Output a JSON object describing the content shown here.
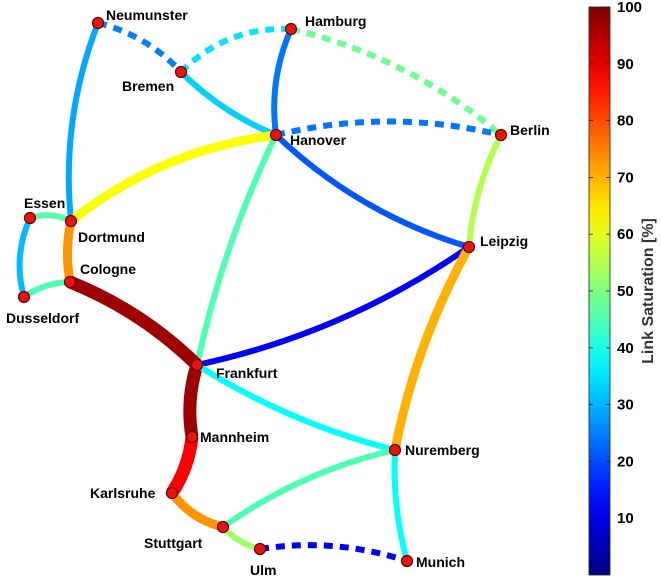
{
  "colorbar": {
    "label": "Link Saturation [%]",
    "min": 0,
    "max": 100,
    "ticks": [
      "10",
      "20",
      "30",
      "40",
      "50",
      "60",
      "70",
      "80",
      "90",
      "100"
    ],
    "colormap": "jet"
  },
  "cities": [
    {
      "id": "neumunster",
      "label": "Neumunster"
    },
    {
      "id": "hamburg",
      "label": "Hamburg"
    },
    {
      "id": "bremen",
      "label": "Bremen"
    },
    {
      "id": "hanover",
      "label": "Hanover"
    },
    {
      "id": "berlin",
      "label": "Berlin"
    },
    {
      "id": "essen",
      "label": "Essen"
    },
    {
      "id": "dortmund",
      "label": "Dortmund"
    },
    {
      "id": "cologne",
      "label": "Cologne"
    },
    {
      "id": "dusseldorf",
      "label": "Dusseldorf"
    },
    {
      "id": "leipzig",
      "label": "Leipzig"
    },
    {
      "id": "frankfurt",
      "label": "Frankfurt"
    },
    {
      "id": "mannheim",
      "label": "Mannheim"
    },
    {
      "id": "nuremberg",
      "label": "Nuremberg"
    },
    {
      "id": "karlsruhe",
      "label": "Karlsruhe"
    },
    {
      "id": "stuttgart",
      "label": "Stuttgart"
    },
    {
      "id": "ulm",
      "label": "Ulm"
    },
    {
      "id": "munich",
      "label": "Munich"
    }
  ],
  "links": [
    {
      "from": "neumunster",
      "to": "bremen",
      "saturation": 25,
      "dashed": true
    },
    {
      "from": "neumunster",
      "to": "dortmund",
      "saturation": 29,
      "dashed": false
    },
    {
      "from": "bremen",
      "to": "hamburg",
      "saturation": 35,
      "dashed": true
    },
    {
      "from": "bremen",
      "to": "hanover",
      "saturation": 33,
      "dashed": false
    },
    {
      "from": "hamburg",
      "to": "berlin",
      "saturation": 48,
      "dashed": true
    },
    {
      "from": "hamburg",
      "to": "hanover",
      "saturation": 24,
      "dashed": false
    },
    {
      "from": "hanover",
      "to": "berlin",
      "saturation": 24,
      "dashed": true
    },
    {
      "from": "hanover",
      "to": "dortmund",
      "saturation": 62,
      "dashed": false
    },
    {
      "from": "hanover",
      "to": "leipzig",
      "saturation": 21,
      "dashed": false
    },
    {
      "from": "hanover",
      "to": "frankfurt",
      "saturation": 45,
      "dashed": false
    },
    {
      "from": "berlin",
      "to": "leipzig",
      "saturation": 55,
      "dashed": false
    },
    {
      "from": "essen",
      "to": "dortmund",
      "saturation": 46,
      "dashed": false
    },
    {
      "from": "essen",
      "to": "dusseldorf",
      "saturation": 31,
      "dashed": false
    },
    {
      "from": "dortmund",
      "to": "cologne",
      "saturation": 73,
      "dashed": false
    },
    {
      "from": "dusseldorf",
      "to": "cologne",
      "saturation": 45,
      "dashed": false
    },
    {
      "from": "cologne",
      "to": "frankfurt",
      "saturation": 97,
      "dashed": false
    },
    {
      "from": "leipzig",
      "to": "frankfurt",
      "saturation": 12,
      "dashed": false
    },
    {
      "from": "leipzig",
      "to": "nuremberg",
      "saturation": 70,
      "dashed": false
    },
    {
      "from": "frankfurt",
      "to": "mannheim",
      "saturation": 97,
      "dashed": false
    },
    {
      "from": "frankfurt",
      "to": "nuremberg",
      "saturation": 38,
      "dashed": false
    },
    {
      "from": "mannheim",
      "to": "karlsruhe",
      "saturation": 88,
      "dashed": false
    },
    {
      "from": "karlsruhe",
      "to": "stuttgart",
      "saturation": 73,
      "dashed": false
    },
    {
      "from": "stuttgart",
      "to": "nuremberg",
      "saturation": 45,
      "dashed": false
    },
    {
      "from": "stuttgart",
      "to": "ulm",
      "saturation": 53,
      "dashed": false
    },
    {
      "from": "ulm",
      "to": "munich",
      "saturation": 12,
      "dashed": true
    },
    {
      "from": "nuremberg",
      "to": "munich",
      "saturation": 38,
      "dashed": false
    }
  ]
}
